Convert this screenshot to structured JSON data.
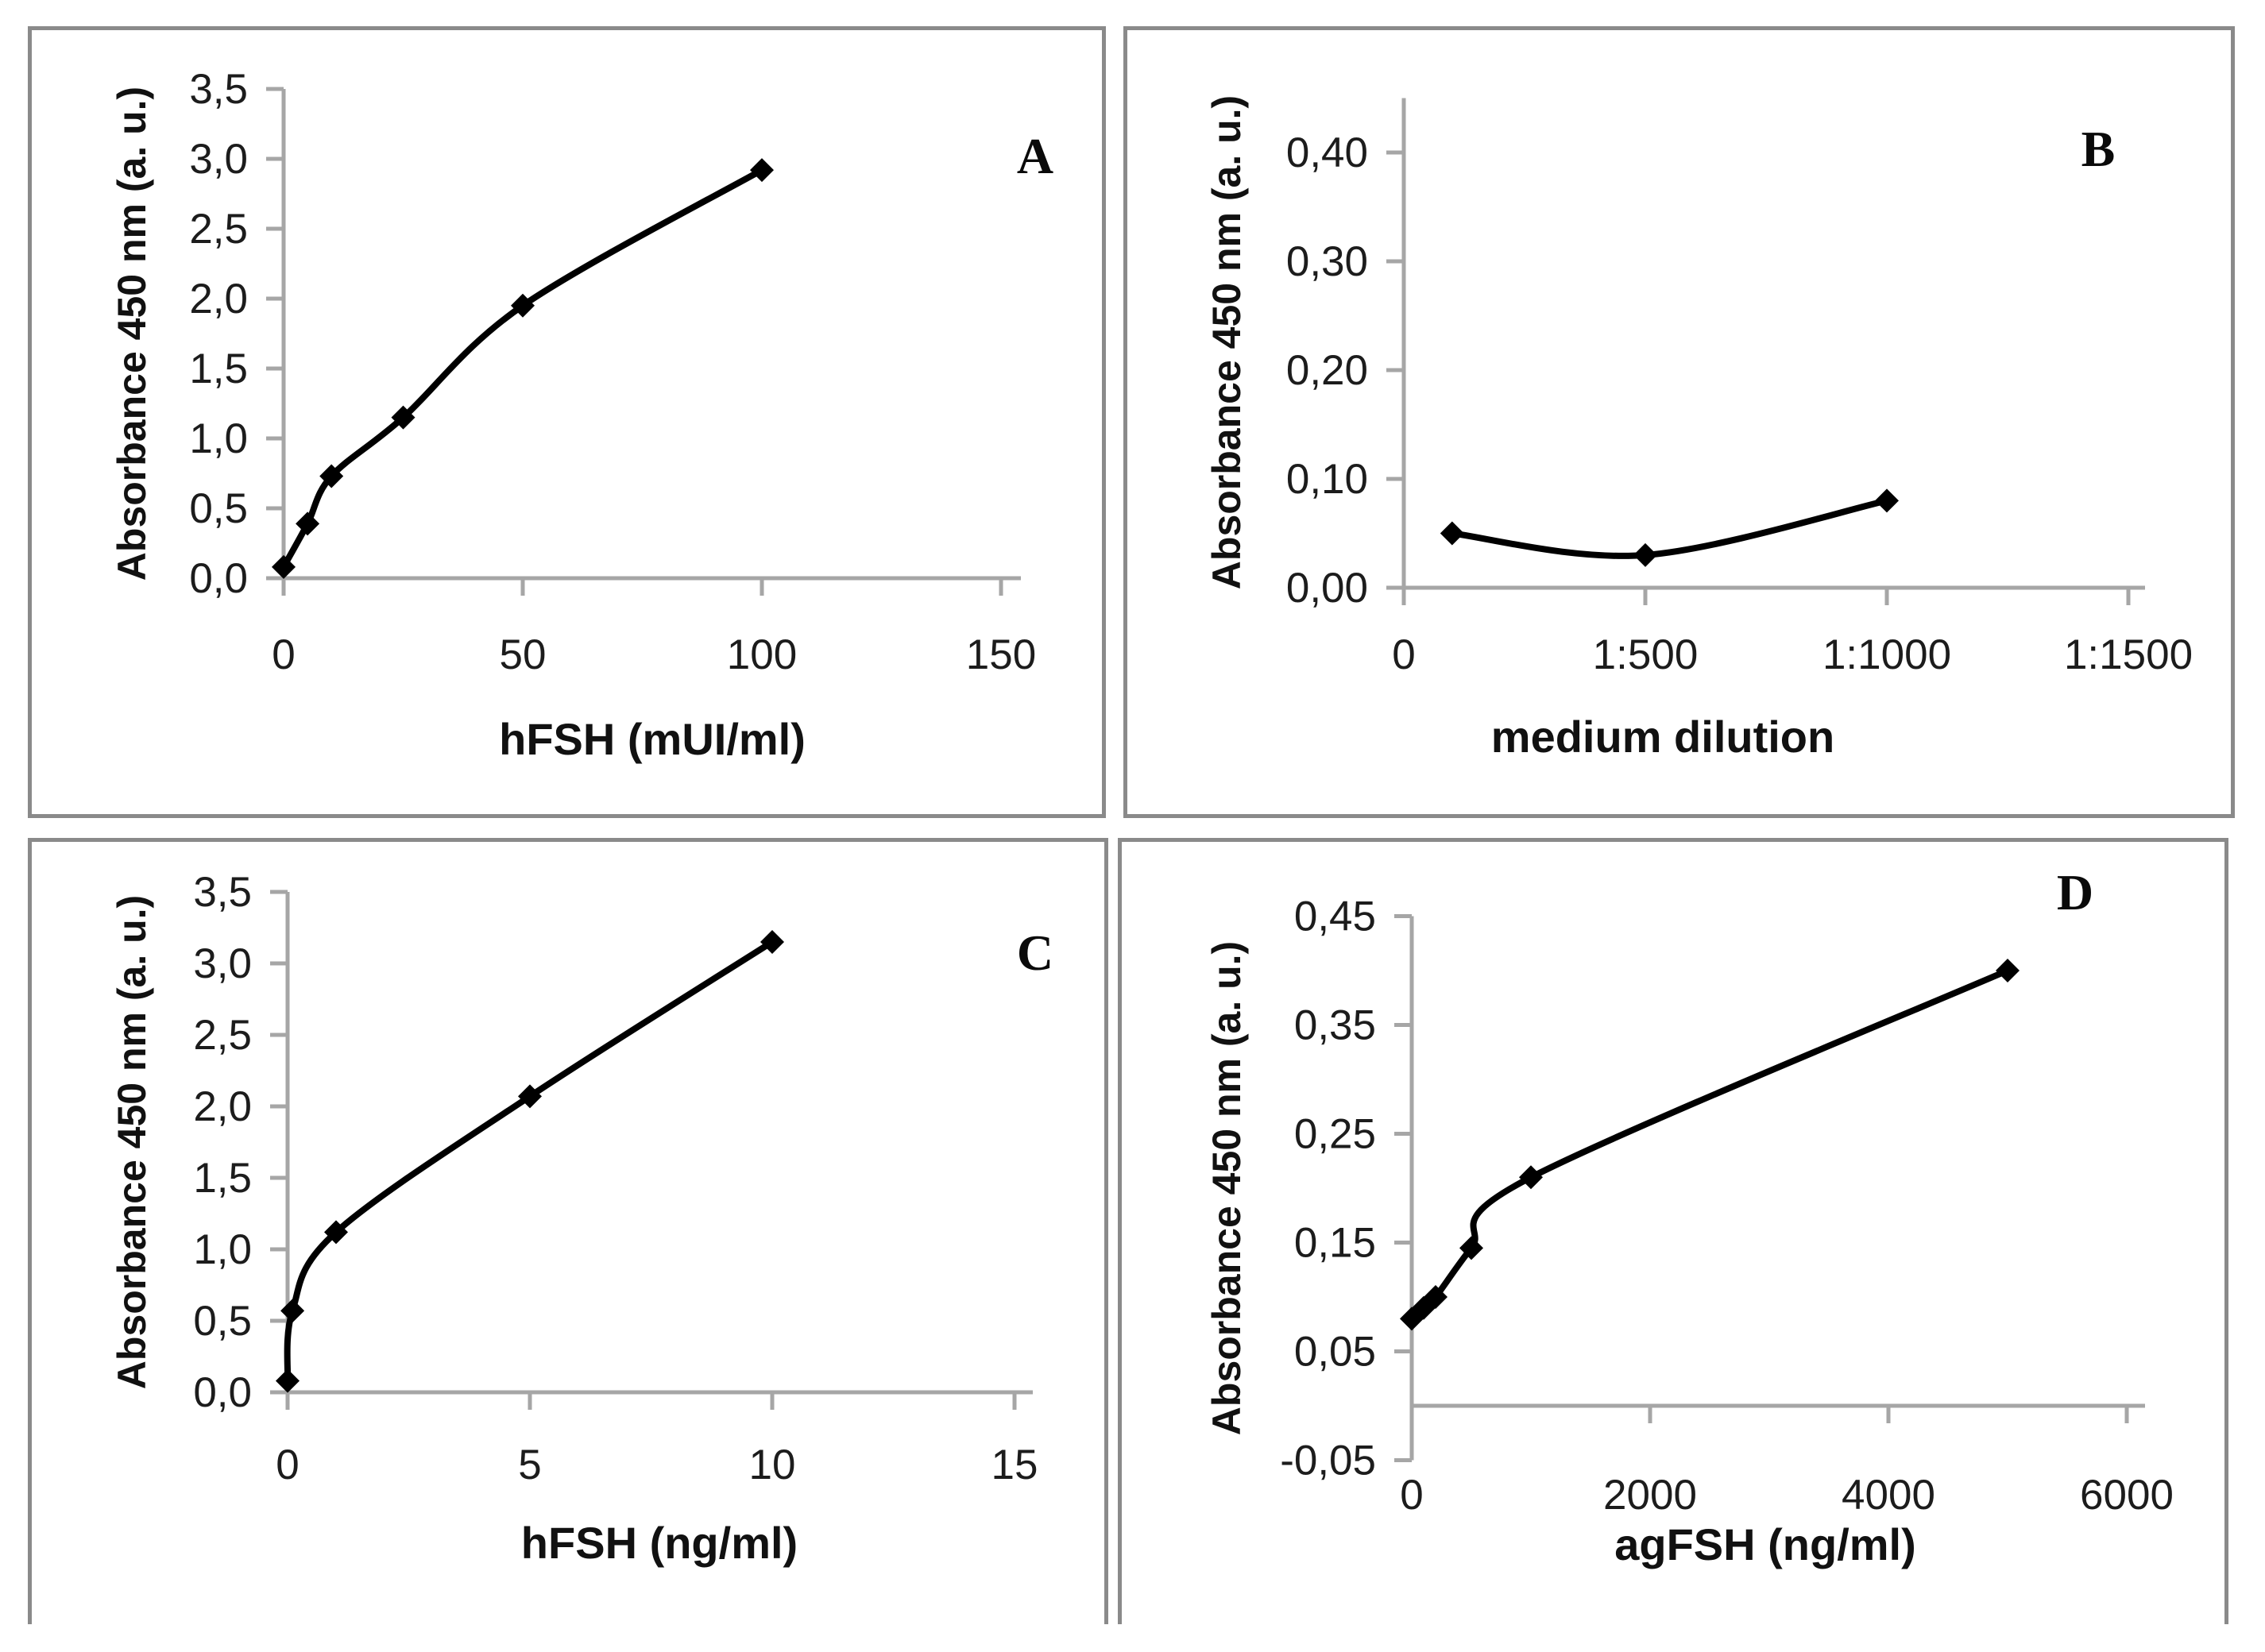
{
  "figure": {
    "background_color": "#ffffff",
    "panel_border_color": "#8a8a8a",
    "axis_color": "#a6a6a6",
    "series_color": "#000000",
    "text_color": "#1c1c1c",
    "marker": "filled-diamond"
  },
  "chart_data": [
    {
      "type": "line",
      "letter": "A",
      "ylabel": "Absorbance 450 nm (a. u.)",
      "xlabel": "hFSH (mUI/ml)",
      "x": [
        0,
        5,
        10,
        25,
        50,
        100
      ],
      "y": [
        0.08,
        0.39,
        0.73,
        1.15,
        1.95,
        2.92
      ],
      "x_tick_values": [
        0,
        50,
        100,
        150
      ],
      "x_tick_labels": [
        "0",
        "50",
        "100",
        "150"
      ],
      "y_tick_values": [
        0,
        0.5,
        1.0,
        1.5,
        2.0,
        2.5,
        3.0,
        3.5
      ],
      "y_tick_labels": [
        "0,0",
        "0,5",
        "1,0",
        "1,5",
        "2,0",
        "2,5",
        "3,0",
        "3,5"
      ],
      "xlim": [
        0,
        154
      ],
      "ylim": [
        0,
        3.5
      ],
      "grid": false,
      "legend": "none"
    },
    {
      "type": "line",
      "letter": "B",
      "ylabel": "Absorbance 450 nm (a. u.)",
      "xlabel": "medium dilution",
      "x": [
        100,
        500,
        1000
      ],
      "y": [
        0.05,
        0.03,
        0.08
      ],
      "x_tick_values": [
        0,
        500,
        1000,
        1500
      ],
      "x_tick_labels": [
        "0",
        "1:500",
        "1:1000",
        "1:1500"
      ],
      "y_tick_values": [
        0,
        0.1,
        0.2,
        0.3,
        0.4
      ],
      "y_tick_labels": [
        "0,00",
        "0,10",
        "0,20",
        "0,30",
        "0,40"
      ],
      "xlim": [
        0,
        1535
      ],
      "ylim": [
        0,
        0.45
      ],
      "grid": false,
      "legend": "none"
    },
    {
      "type": "line",
      "letter": "C",
      "ylabel": "Absorbance 450 nm (a. u.)",
      "xlabel": "hFSH (ng/ml)",
      "x": [
        0,
        0.1,
        1,
        5,
        10
      ],
      "y": [
        0.08,
        0.57,
        1.12,
        2.07,
        3.15
      ],
      "x_tick_values": [
        0,
        5,
        10,
        15
      ],
      "x_tick_labels": [
        "0",
        "5",
        "10",
        "15"
      ],
      "y_tick_values": [
        0,
        0.5,
        1.0,
        1.5,
        2.0,
        2.5,
        3.0,
        3.5
      ],
      "y_tick_labels": [
        "0,0",
        "0,5",
        "1,0",
        "1,5",
        "2,0",
        "2,5",
        "3,0",
        "3,5"
      ],
      "xlim": [
        0,
        15.4
      ],
      "ylim": [
        0,
        3.5
      ],
      "grid": false,
      "legend": "none"
    },
    {
      "type": "line",
      "letter": "D",
      "ylabel": "Absorbance 450 nm (a. u.)",
      "xlabel": "agFSH (ng/ml)",
      "x": [
        0,
        100,
        200,
        500,
        1000,
        5000
      ],
      "y": [
        0.08,
        0.09,
        0.1,
        0.145,
        0.21,
        0.4
      ],
      "x_tick_values": [
        0,
        2000,
        4000,
        6000
      ],
      "x_tick_labels": [
        "0",
        "2000",
        "4000",
        "6000"
      ],
      "y_tick_values": [
        -0.05,
        0.05,
        0.15,
        0.25,
        0.35,
        0.45
      ],
      "y_tick_labels": [
        "-0,05",
        "0,05",
        "0,15",
        "0,25",
        "0,35",
        "0,45"
      ],
      "xlim": [
        0,
        6153
      ],
      "ylim": [
        -0.05,
        0.45
      ],
      "x_axis_cross_y": 0,
      "grid": false,
      "legend": "none"
    }
  ]
}
